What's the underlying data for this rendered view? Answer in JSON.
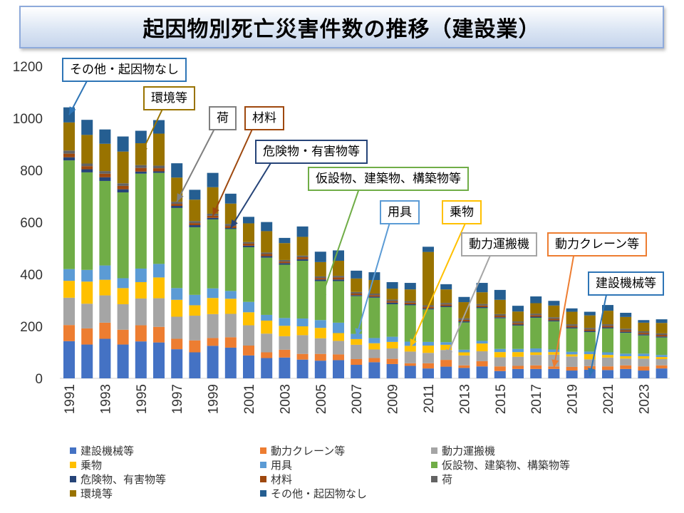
{
  "chart_data": {
    "type": "bar",
    "stacked": true,
    "title": "起因物別死亡災害件数の推移（建設業）",
    "xlabel": "",
    "ylabel": "",
    "ylim": [
      0,
      1200
    ],
    "yticks": [
      0,
      200,
      400,
      600,
      800,
      1000,
      1200
    ],
    "xtick_labels": [
      "1991",
      "1993",
      "1995",
      "1997",
      "1999",
      "2001",
      "2003",
      "2005",
      "2007",
      "2009",
      "2011",
      "2013",
      "2015",
      "2017",
      "2019",
      "2021",
      "2023"
    ],
    "categories": [
      "1991",
      "1992",
      "1993",
      "1994",
      "1995",
      "1996",
      "1997",
      "1998",
      "1999",
      "2000",
      "2001",
      "2002",
      "2003",
      "2004",
      "2005",
      "2006",
      "2007",
      "2008",
      "2009",
      "2010",
      "2011",
      "2012",
      "2013",
      "2014",
      "2015",
      "2016",
      "2017",
      "2018",
      "2019",
      "2020",
      "2021",
      "2022",
      "2023",
      "2024"
    ],
    "series": [
      {
        "name": "建設機械等",
        "color": "#4472c4",
        "values": [
          143,
          130,
          152,
          130,
          142,
          138,
          112,
          100,
          125,
          118,
          88,
          78,
          80,
          72,
          68,
          70,
          52,
          62,
          55,
          48,
          38,
          45,
          40,
          46,
          28,
          36,
          36,
          36,
          30,
          33,
          32,
          36,
          30,
          38
        ]
      },
      {
        "name": "動力クレーン等",
        "color": "#ed7d31",
        "values": [
          62,
          62,
          62,
          57,
          62,
          60,
          40,
          46,
          30,
          40,
          38,
          22,
          30,
          22,
          26,
          22,
          22,
          16,
          20,
          10,
          20,
          26,
          10,
          20,
          18,
          12,
          14,
          10,
          14,
          14,
          14,
          14,
          16,
          12
        ]
      },
      {
        "name": "動力運搬機",
        "color": "#a5a5a5",
        "values": [
          105,
          95,
          105,
          98,
          103,
          110,
          85,
          95,
          92,
          90,
          78,
          72,
          52,
          72,
          60,
          52,
          55,
          33,
          40,
          45,
          40,
          38,
          38,
          38,
          35,
          35,
          40,
          45,
          40,
          26,
          34,
          26,
          30,
          24
        ]
      },
      {
        "name": "乗物",
        "color": "#ffc000",
        "values": [
          65,
          85,
          60,
          62,
          63,
          80,
          65,
          40,
          62,
          58,
          50,
          50,
          40,
          34,
          40,
          30,
          22,
          24,
          25,
          22,
          28,
          20,
          12,
          30,
          20,
          18,
          10,
          10,
          8,
          20,
          10,
          9,
          9,
          8
        ]
      },
      {
        "name": "用具",
        "color": "#5b9bd5",
        "values": [
          45,
          45,
          55,
          38,
          52,
          52,
          45,
          40,
          37,
          30,
          40,
          22,
          30,
          30,
          30,
          40,
          20,
          20,
          20,
          16,
          14,
          10,
          10,
          10,
          12,
          12,
          15,
          10,
          10,
          10,
          10,
          10,
          10,
          8
        ]
      },
      {
        "name": "仮設物、建築物、構築物等",
        "color": "#70ad47",
        "values": [
          418,
          375,
          325,
          330,
          365,
          350,
          308,
          260,
          265,
          238,
          210,
          220,
          205,
          222,
          150,
          160,
          145,
          155,
          125,
          140,
          125,
          135,
          105,
          126,
          118,
          90,
          118,
          108,
          90,
          75,
          92,
          80,
          70,
          67
        ]
      },
      {
        "name": "危険物、有害物等",
        "color": "#264478",
        "values": [
          12,
          12,
          14,
          12,
          8,
          6,
          8,
          8,
          6,
          4,
          6,
          6,
          6,
          6,
          6,
          6,
          4,
          4,
          6,
          4,
          4,
          4,
          4,
          4,
          4,
          4,
          4,
          4,
          4,
          4,
          4,
          4,
          4,
          4
        ]
      },
      {
        "name": "材料",
        "color": "#9e480e",
        "values": [
          14,
          12,
          14,
          13,
          14,
          12,
          8,
          8,
          8,
          8,
          8,
          8,
          6,
          8,
          6,
          8,
          6,
          6,
          6,
          6,
          6,
          6,
          6,
          6,
          6,
          6,
          6,
          6,
          6,
          6,
          6,
          6,
          6,
          6
        ]
      },
      {
        "name": "荷",
        "color": "#636363",
        "values": [
          12,
          10,
          10,
          10,
          11,
          10,
          8,
          8,
          8,
          8,
          6,
          6,
          6,
          6,
          6,
          6,
          6,
          6,
          6,
          6,
          6,
          6,
          6,
          6,
          6,
          6,
          6,
          6,
          6,
          6,
          6,
          6,
          6,
          6
        ]
      },
      {
        "name": "環境等",
        "color": "#997300",
        "values": [
          108,
          110,
          105,
          122,
          84,
          123,
          93,
          82,
          102,
          78,
          72,
          82,
          65,
          72,
          55,
          58,
          52,
          52,
          42,
          45,
          205,
          52,
          62,
          45,
          55,
          38,
          40,
          45,
          48,
          48,
          52,
          45,
          33,
          40
        ]
      },
      {
        "name": "その他・起因物なし",
        "color": "#255e91",
        "values": [
          58,
          58,
          55,
          58,
          48,
          52,
          55,
          38,
          55,
          38,
          25,
          35,
          20,
          40,
          40,
          40,
          30,
          30,
          25,
          25,
          20,
          20,
          20,
          36,
          38,
          22,
          26,
          18,
          13,
          14,
          22,
          16,
          10,
          14
        ]
      }
    ],
    "legend_position": "bottom",
    "grid": false
  },
  "title": "起因物別死亡災害件数の推移（建設業）",
  "callouts": {
    "other": "その他・起因物なし",
    "environment": "環境等",
    "load": "荷",
    "materials": "材料",
    "hazardous": "危険物・有害物等",
    "temporary": "仮設物、建築物、構築物等",
    "tools": "用具",
    "vehicles": "乗物",
    "transport": "動力運搬機",
    "crane": "動力クレーン等",
    "construction_machinery": "建設機械等"
  }
}
